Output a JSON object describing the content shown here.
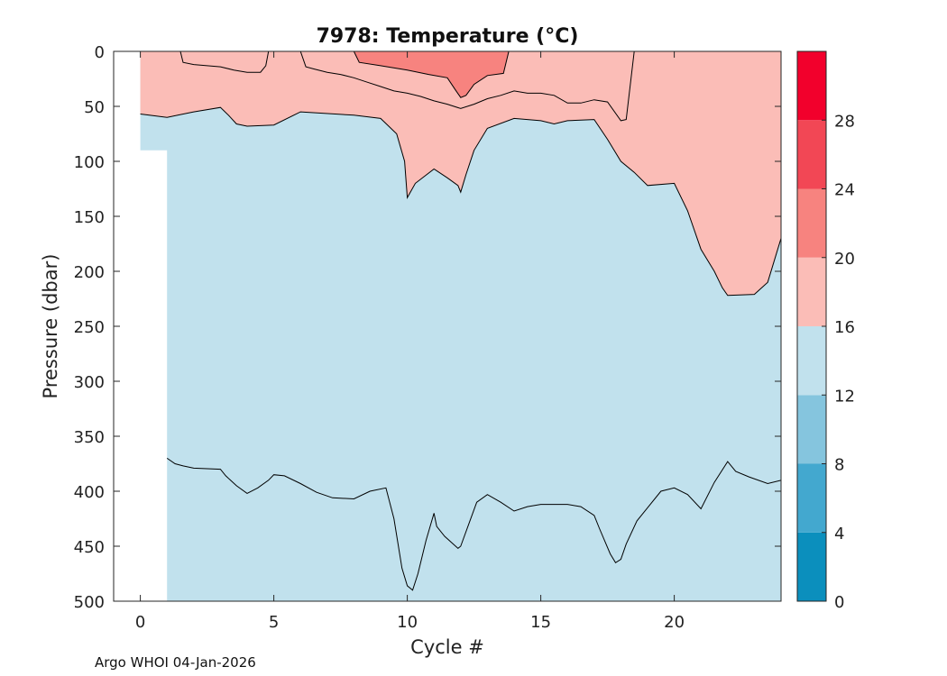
{
  "footer": "Argo WHOI 04-Jan-2026",
  "chart_data": {
    "type": "contourf",
    "title": "7978:  Temperature (°C)",
    "xlabel": "Cycle #",
    "ylabel": "Pressure (dbar)",
    "xlim": [
      -1,
      24
    ],
    "ylim": [
      0,
      500
    ],
    "y_reversed": true,
    "xticks": [
      0,
      5,
      10,
      15,
      20
    ],
    "yticks": [
      0,
      50,
      100,
      150,
      200,
      250,
      300,
      350,
      400,
      450,
      500
    ],
    "colorbar": {
      "ticks": [
        0,
        4,
        8,
        12,
        16,
        20,
        24,
        28
      ],
      "range": [
        0,
        32
      ],
      "levels": [
        {
          "from": 0,
          "to": 4,
          "color": "#0b8fbd"
        },
        {
          "from": 4,
          "to": 8,
          "color": "#43a8cf"
        },
        {
          "from": 8,
          "to": 12,
          "color": "#85c5de"
        },
        {
          "from": 12,
          "to": 16,
          "color": "#c1e1ed"
        },
        {
          "from": 16,
          "to": 20,
          "color": "#fbbdb7"
        },
        {
          "from": 20,
          "to": 24,
          "color": "#f7837f"
        },
        {
          "from": 24,
          "to": 28,
          "color": "#f24755"
        },
        {
          "from": 28,
          "to": 32,
          "color": "#f2002c"
        }
      ]
    },
    "data_region": {
      "cycle0": {
        "x": [
          0,
          1
        ],
        "pmin": 0,
        "pmax": 90
      },
      "others": {
        "x": [
          1,
          24
        ],
        "pmin": 0,
        "pmax": 500
      }
    },
    "isotherms": [
      {
        "name": "16°C",
        "x": [
          0,
          1,
          2,
          3,
          3.3,
          3.6,
          4,
          5,
          6,
          8,
          9,
          9.6,
          9.9,
          10,
          10.3,
          11,
          11.5,
          11.9,
          12,
          12.2,
          12.5,
          13,
          14,
          15,
          15.5,
          16,
          17,
          17.5,
          18,
          18.5,
          19,
          20,
          20.5,
          21,
          21.5,
          21.8,
          22,
          23,
          23.5,
          24
        ],
        "p": [
          57,
          60,
          55,
          51,
          58,
          66,
          68,
          67,
          55,
          58,
          61,
          75,
          100,
          133,
          120,
          107,
          115,
          122,
          128,
          112,
          90,
          70,
          61,
          63,
          66,
          63,
          62,
          80,
          100,
          110,
          122,
          120,
          145,
          180,
          200,
          215,
          222,
          221,
          210,
          170
        ]
      },
      {
        "name": "20°C",
        "x": [
          1.5,
          1.6,
          2,
          2.5,
          3,
          3.5,
          4,
          4.5,
          4.7,
          4.8
        ],
        "p": [
          0,
          10,
          12,
          13,
          14,
          17,
          19,
          19,
          13,
          0
        ]
      },
      {
        "name": "20°C (b)",
        "x": [
          6,
          6.2,
          6.5,
          7,
          7.5,
          8,
          8.5,
          9,
          9.5,
          10,
          10.5,
          11,
          11.5,
          12,
          12.5,
          13,
          13.5,
          14,
          14.5,
          15,
          15.5,
          16,
          16.5,
          17,
          17.5,
          18,
          18.2,
          18.5
        ],
        "p": [
          0,
          14,
          16,
          19,
          21,
          24,
          28,
          32,
          36,
          38,
          41,
          45,
          48,
          52,
          48,
          43,
          40,
          36,
          38,
          38,
          40,
          47,
          47,
          44,
          46,
          63,
          62,
          0
        ]
      },
      {
        "name": "24°C",
        "x": [
          8,
          8.2,
          9,
          10,
          10.8,
          11.5,
          11.8,
          12,
          12.2,
          12.5,
          13,
          13.6,
          13.8
        ],
        "p": [
          0,
          10,
          13,
          17,
          21,
          24,
          35,
          42,
          40,
          30,
          22,
          20,
          0
        ]
      },
      {
        "name": "12°C",
        "x": [
          1,
          1.3,
          1.6,
          2,
          3,
          3.2,
          3.6,
          4,
          4.4,
          4.8,
          5,
          5.4,
          6,
          6.6,
          7.2,
          8,
          8.6,
          9.2,
          9.5,
          9.8,
          10,
          10.2,
          10.4,
          10.7,
          11,
          11.1,
          11.4,
          11.9,
          12,
          12.3,
          12.6,
          13,
          13.5,
          14,
          14.5,
          15,
          15.5,
          16,
          16.5,
          17,
          17.2,
          17.6,
          17.8,
          18,
          18.2,
          18.6,
          19,
          19.5,
          20,
          20.5,
          21,
          21.5,
          22,
          22.3,
          22.8,
          23.5,
          24
        ],
        "p": [
          370,
          375,
          377,
          379,
          380,
          386,
          395,
          402,
          397,
          390,
          385,
          386,
          393,
          401,
          406,
          407,
          400,
          397,
          425,
          470,
          486,
          490,
          475,
          445,
          420,
          432,
          441,
          452,
          450,
          430,
          410,
          403,
          410,
          418,
          414,
          412,
          412,
          412,
          414,
          422,
          434,
          457,
          465,
          462,
          448,
          427,
          415,
          400,
          397,
          403,
          416,
          392,
          373,
          382,
          387,
          393,
          390
        ]
      }
    ]
  }
}
